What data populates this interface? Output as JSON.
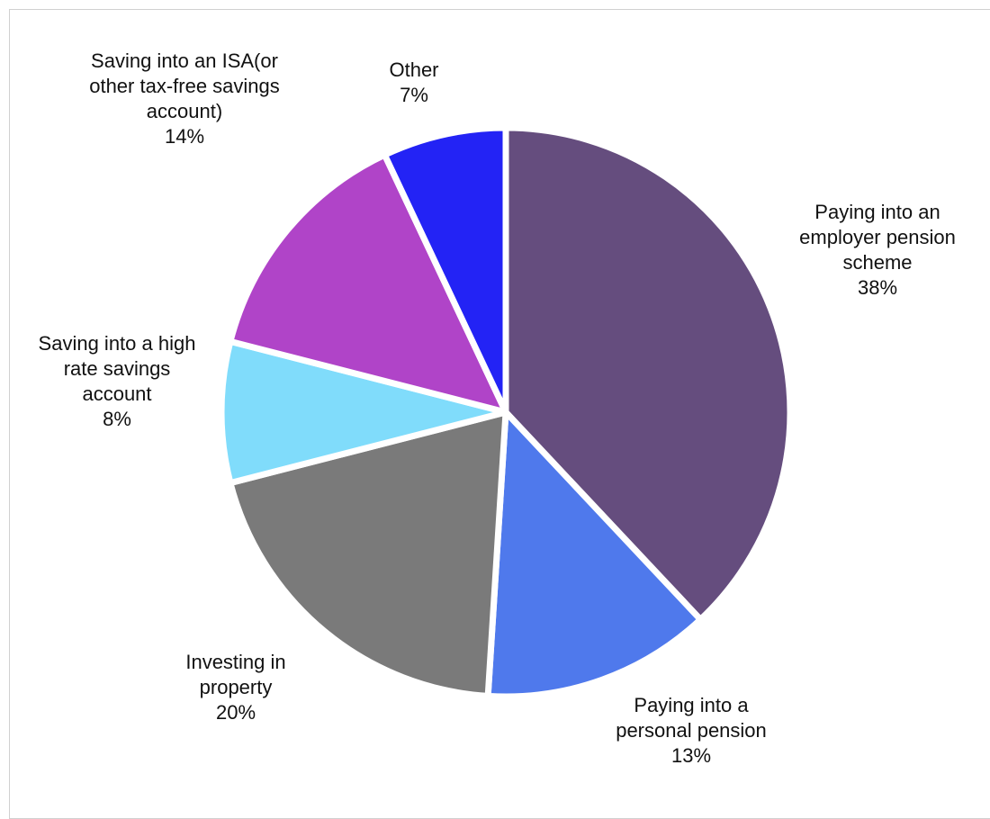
{
  "chart_data": {
    "type": "pie",
    "categories": [
      "Paying into an employer pension scheme",
      "Paying into a personal pension",
      "Investing in property",
      "Saving into a high rate savings account",
      "Saving into an ISA(or other tax-free savings account)",
      "Other"
    ],
    "values": [
      38,
      13,
      20,
      8,
      14,
      7
    ],
    "value_labels": [
      "38%",
      "13%",
      "20%",
      "8%",
      "14%",
      "7%"
    ],
    "colors": [
      "#654d7e",
      "#4f79ec",
      "#7a7a7a",
      "#80dcfb",
      "#b044c8",
      "#2323f5"
    ]
  }
}
